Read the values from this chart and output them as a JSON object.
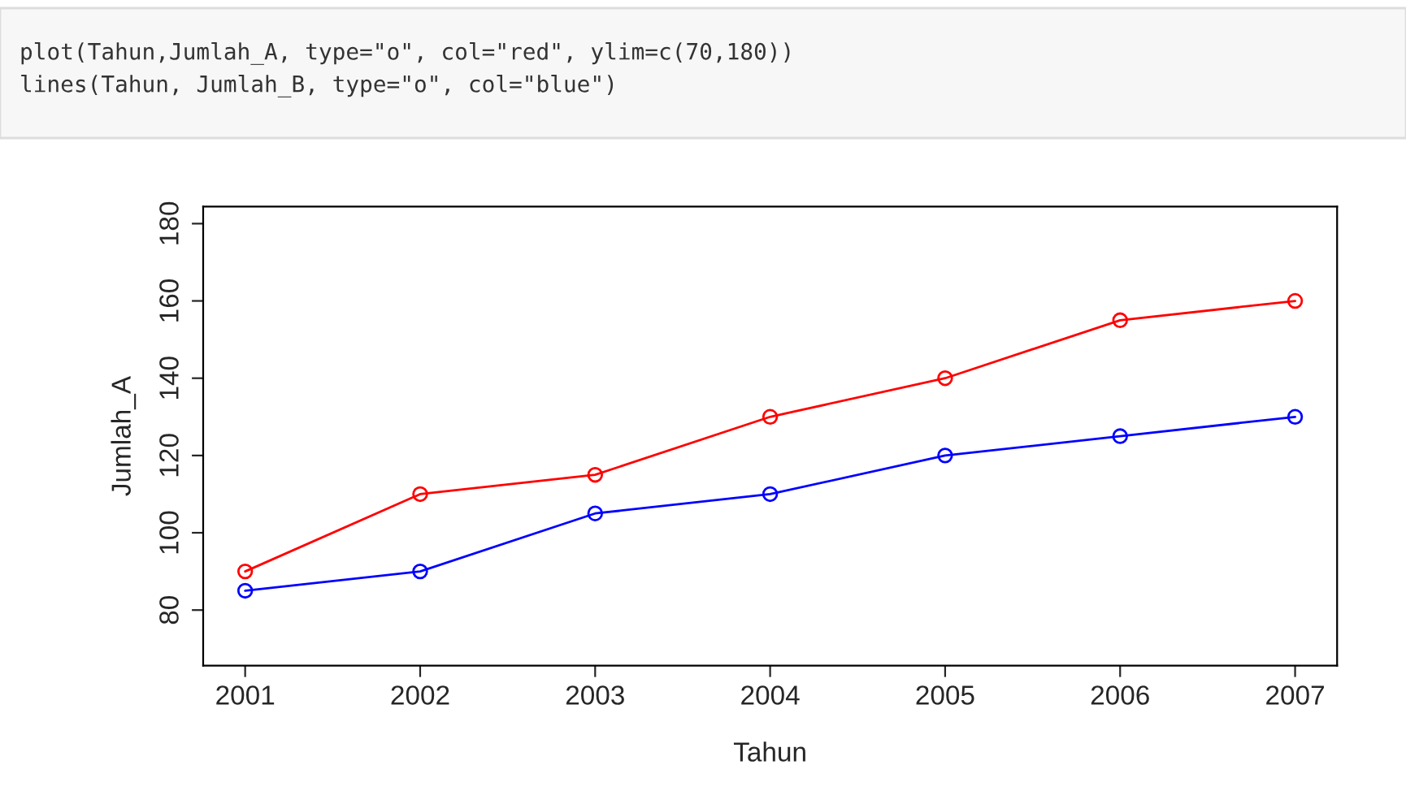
{
  "chart_data": {
    "type": "line",
    "xlabel": "Tahun",
    "ylabel": "Jumlah_A",
    "annotations": [
      "plot(Tahun,Jumlah_A, type=\"o\", col=\"red\", ylim=c(70,180))",
      "lines(Tahun, Jumlah_B, type=\"o\", col=\"blue\")"
    ],
    "x": [
      2001,
      2002,
      2003,
      2004,
      2005,
      2006,
      2007
    ],
    "series": [
      {
        "color": "#ff0000",
        "values": [
          90,
          110,
          115,
          130,
          140,
          155,
          160
        ]
      },
      {
        "color": "#0000ff",
        "values": [
          85,
          90,
          105,
          110,
          120,
          125,
          130
        ]
      }
    ],
    "xlim": [
      2000.76,
      2007.24
    ],
    "xticks": [
      2001,
      2002,
      2003,
      2004,
      2005,
      2006,
      2007
    ],
    "ylim": [
      65.6,
      184.4
    ],
    "yticks": [
      80,
      100,
      120,
      140,
      160,
      180
    ],
    "marker": "circle",
    "line_style": "solid",
    "grid": false,
    "legend": false
  }
}
